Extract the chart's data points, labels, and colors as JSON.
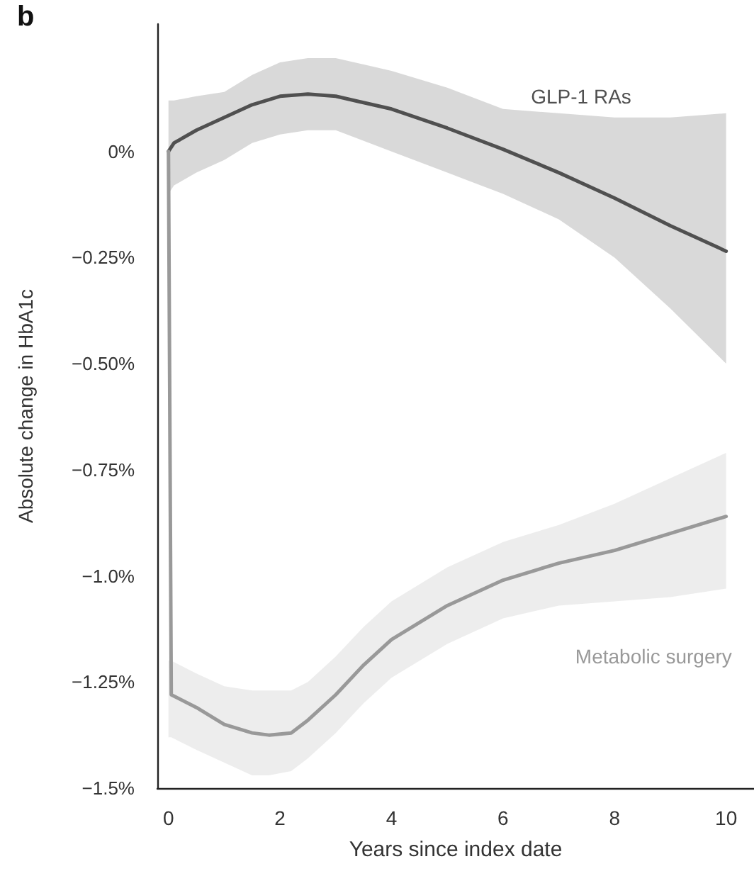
{
  "chart_data": {
    "type": "line",
    "annotations": [
      "b"
    ],
    "xlabel": "Years since index date",
    "ylabel": "Absolute change in HbA1c",
    "xlim": [
      -0.2,
      10.5
    ],
    "xticks": [
      0,
      2,
      4,
      6,
      8,
      10
    ],
    "ylim": [
      -1.5,
      0.3
    ],
    "yticks": [
      {
        "value": 0,
        "label": "0%"
      },
      {
        "value": -0.25,
        "label": "−0.25%"
      },
      {
        "value": -0.5,
        "label": "−0.50%"
      },
      {
        "value": -0.75,
        "label": "−0.75%"
      },
      {
        "value": -1.0,
        "label": "−1.0%"
      },
      {
        "value": -1.25,
        "label": "−1.25%"
      },
      {
        "value": -1.5,
        "label": "−1.5%"
      }
    ],
    "grid": false,
    "legend": false,
    "marker": "none",
    "line_style": "solid",
    "series": [
      {
        "name": "GLP-1 RAs",
        "color": "#505050",
        "x": [
          0,
          0.1,
          0.5,
          1,
          1.5,
          2,
          2.5,
          3,
          4,
          5,
          6,
          7,
          8,
          9,
          10
        ],
        "values": [
          0,
          0.02,
          0.05,
          0.08,
          0.11,
          0.13,
          0.135,
          0.13,
          0.1,
          0.055,
          0.005,
          -0.05,
          -0.11,
          -0.175,
          -0.235
        ],
        "lower": [
          -0.1,
          -0.08,
          -0.05,
          -0.02,
          0.02,
          0.04,
          0.05,
          0.05,
          0.0,
          -0.05,
          -0.1,
          -0.16,
          -0.25,
          -0.37,
          -0.5
        ],
        "upper": [
          0.12,
          0.12,
          0.13,
          0.14,
          0.18,
          0.21,
          0.22,
          0.22,
          0.19,
          0.15,
          0.1,
          0.09,
          0.08,
          0.08,
          0.09
        ]
      },
      {
        "name": "Metabolic surgery",
        "color": "#999999",
        "x": [
          0,
          0.05,
          0.5,
          1,
          1.5,
          1.8,
          2.2,
          2.5,
          3,
          3.5,
          4,
          5,
          6,
          7,
          8,
          9,
          10
        ],
        "values": [
          0,
          -1.28,
          -1.31,
          -1.35,
          -1.37,
          -1.375,
          -1.37,
          -1.34,
          -1.28,
          -1.21,
          -1.15,
          -1.07,
          -1.01,
          -0.97,
          -0.94,
          -0.9,
          -0.86
        ],
        "lower": [
          -1.38,
          -1.38,
          -1.41,
          -1.44,
          -1.47,
          -1.47,
          -1.46,
          -1.43,
          -1.37,
          -1.3,
          -1.24,
          -1.16,
          -1.1,
          -1.07,
          -1.06,
          -1.05,
          -1.03
        ],
        "upper": [
          -1.2,
          -1.2,
          -1.23,
          -1.26,
          -1.27,
          -1.27,
          -1.27,
          -1.25,
          -1.19,
          -1.12,
          -1.06,
          -0.98,
          -0.92,
          -0.88,
          -0.83,
          -0.77,
          -0.71
        ]
      }
    ]
  }
}
